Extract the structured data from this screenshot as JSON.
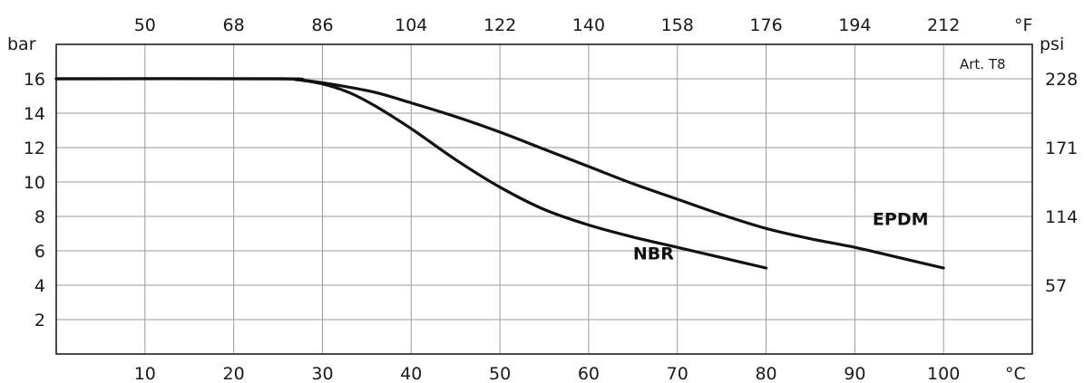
{
  "chart_data": {
    "type": "line",
    "annotation": "Art. T8",
    "xlabel_bottom_unit": "°C",
    "xlabel_top_unit": "°F",
    "ylabel_left_unit": "bar",
    "ylabel_right_unit": "psi",
    "x_ticks_bottom": [
      "10",
      "20",
      "30",
      "40",
      "50",
      "60",
      "70",
      "80",
      "90",
      "100"
    ],
    "x_ticks_top": [
      "50",
      "68",
      "86",
      "104",
      "122",
      "140",
      "158",
      "176",
      "194",
      "212"
    ],
    "y_ticks_left": [
      "2",
      "4",
      "6",
      "8",
      "10",
      "12",
      "14",
      "16"
    ],
    "y_ticks_right": [
      "57",
      "114",
      "171",
      "228"
    ],
    "xlim": [
      0,
      110
    ],
    "ylim": [
      0,
      18
    ],
    "grid": true,
    "series": [
      {
        "name": "NBR",
        "x": [
          0,
          25,
          27,
          30,
          33,
          36,
          40,
          45,
          50,
          55,
          60,
          65,
          70,
          75,
          80
        ],
        "y": [
          16,
          16,
          15.95,
          15.7,
          15.2,
          14.4,
          13.1,
          11.3,
          9.7,
          8.4,
          7.5,
          6.8,
          6.2,
          5.6,
          5.0
        ]
      },
      {
        "name": "EPDM",
        "x": [
          0,
          25,
          28,
          32,
          36,
          40,
          45,
          50,
          55,
          60,
          65,
          70,
          75,
          80,
          85,
          90,
          95,
          100
        ],
        "y": [
          16,
          16,
          15.9,
          15.6,
          15.2,
          14.6,
          13.8,
          12.9,
          11.9,
          10.9,
          9.9,
          9.0,
          8.1,
          7.3,
          6.7,
          6.2,
          5.6,
          5.0
        ]
      }
    ],
    "series_label_positions": [
      {
        "name": "NBR",
        "x": 65,
        "y": 5.5
      },
      {
        "name": "EPDM",
        "x": 92,
        "y": 7.5
      }
    ]
  }
}
